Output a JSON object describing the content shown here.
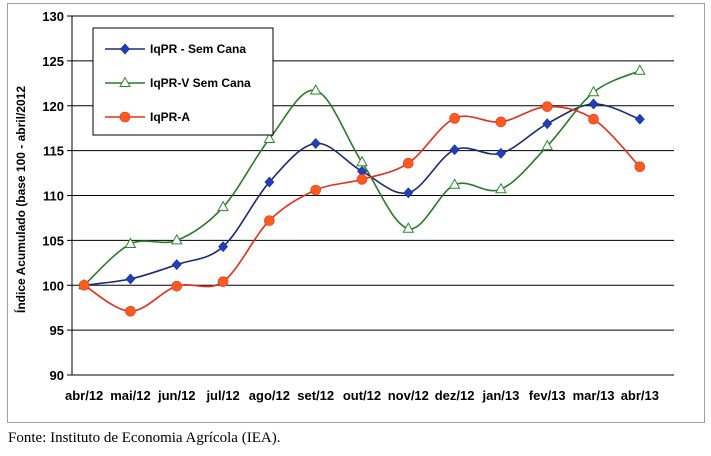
{
  "chart_data": {
    "type": "line",
    "title": "",
    "xlabel": "",
    "ylabel": "Índice Acumulado (base 100 - abril/2012",
    "ylim": [
      90,
      130
    ],
    "yticks": [
      90,
      95,
      100,
      105,
      110,
      115,
      120,
      125,
      130
    ],
    "grid": "horizontal",
    "legend_position": "top-left",
    "categories": [
      "abr/12",
      "mai/12",
      "jun/12",
      "jul/12",
      "ago/12",
      "set/12",
      "out/12",
      "nov/12",
      "dez/12",
      "jan/13",
      "fev/13",
      "mar/13",
      "abr/13"
    ],
    "series": [
      {
        "name": "IqPR - Sem Cana",
        "color": "#1f3fbf",
        "line_color": "#1c2a7a",
        "marker": "diamond",
        "values": [
          100.0,
          100.7,
          102.3,
          104.3,
          111.5,
          115.8,
          112.7,
          110.3,
          115.1,
          114.7,
          118.0,
          120.2,
          118.5
        ]
      },
      {
        "name": "IqPR-V Sem Cana",
        "color": "#2a8a2a",
        "line_color": "#2a7a2a",
        "marker": "triangle-open",
        "values": [
          100.0,
          104.6,
          105.0,
          108.7,
          116.3,
          121.7,
          113.7,
          106.3,
          111.2,
          110.7,
          115.5,
          121.5,
          123.9
        ]
      },
      {
        "name": "IqPR-A",
        "color": "#ff5a1f",
        "line_color": "#e0301a",
        "marker": "circle",
        "values": [
          100.0,
          97.1,
          99.9,
          100.4,
          107.2,
          110.6,
          111.8,
          113.6,
          118.6,
          118.2,
          119.9,
          118.5,
          113.2
        ]
      }
    ]
  },
  "source_note": "Fonte: Instituto de Economia Agrícola (IEA)."
}
